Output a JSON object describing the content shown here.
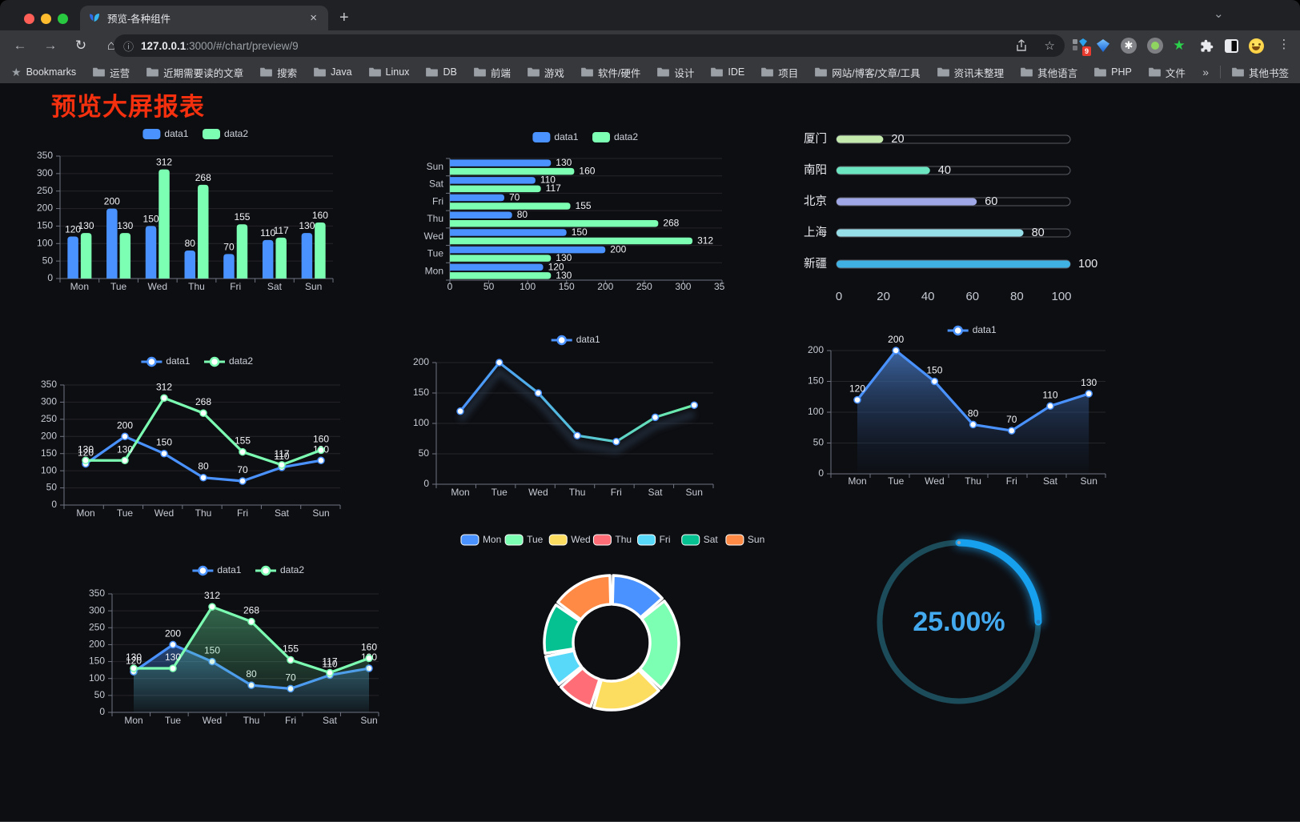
{
  "browser": {
    "tab": {
      "title": "预览-各种组件",
      "close": "×",
      "new_tab": "+",
      "chevron": "⌄"
    },
    "nav": {
      "back": "←",
      "forward": "→",
      "reload": "↻",
      "home": "⌂"
    },
    "url": {
      "info": "ⓘ",
      "host": "127.0.0.1",
      "rest": ":3000/#/chart/preview/9"
    },
    "actions": {
      "bookmark_star": "☆",
      "menu": "⋮",
      "extension_badge": "9",
      "green_star": "★",
      "asterisk": "✱"
    },
    "bookmarks_bar": {
      "star_label": "Bookmarks",
      "folders": [
        "运营",
        "近期需要读的文章",
        "搜索",
        "Java",
        "Linux",
        "DB",
        "前端",
        "游戏",
        "软件/硬件",
        "设计",
        "IDE",
        "项目",
        "网站/博客/文章/工具",
        "资讯未整理",
        "其他语言",
        "PHP",
        "文件服务器"
      ],
      "overflow": "»",
      "other": "其他书签"
    }
  },
  "page": {
    "title": "预览大屏报表",
    "title_color": "#f5300f"
  },
  "chart_data": [
    {
      "id": "bar-vertical",
      "type": "bar",
      "categories": [
        "Mon",
        "Tue",
        "Wed",
        "Thu",
        "Fri",
        "Sat",
        "Sun"
      ],
      "series": [
        {
          "name": "data1",
          "color": "#4992ff",
          "values": [
            120,
            200,
            150,
            80,
            70,
            110,
            130
          ]
        },
        {
          "name": "data2",
          "color": "#7cffb2",
          "values": [
            130,
            130,
            312,
            268,
            155,
            117,
            160
          ]
        }
      ],
      "ylim": [
        0,
        350
      ],
      "ystep": 50,
      "legend_position": "top",
      "value_labels": true,
      "grid": true
    },
    {
      "id": "bar-horizontal",
      "type": "bar-horizontal",
      "categories": [
        "Mon",
        "Tue",
        "Wed",
        "Thu",
        "Fri",
        "Sat",
        "Sun"
      ],
      "display_order_top_to_bottom": [
        "Sun",
        "Sat",
        "Fri",
        "Thu",
        "Wed",
        "Tue",
        "Mon"
      ],
      "series": [
        {
          "name": "data1",
          "color": "#4992ff",
          "values": [
            120,
            200,
            150,
            80,
            70,
            110,
            130
          ]
        },
        {
          "name": "data2",
          "color": "#7cffb2",
          "values": [
            130,
            130,
            312,
            268,
            155,
            117,
            160
          ]
        }
      ],
      "xlim": [
        0,
        350
      ],
      "xstep": 50,
      "legend_position": "top",
      "value_labels": true,
      "grid": true
    },
    {
      "id": "progress-bars",
      "type": "bar",
      "variant": "pictorial-progress",
      "categories": [
        "厦门",
        "南阳",
        "北京",
        "上海",
        "新疆"
      ],
      "values": [
        20,
        40,
        60,
        80,
        100
      ],
      "colors": [
        "#c4ebad",
        "#6be6c1",
        "#a0a7e6",
        "#96dee8",
        "#3fb1e3"
      ],
      "xlim": [
        0,
        100
      ],
      "xticks": [
        0,
        20,
        40,
        60,
        80,
        100
      ],
      "value_labels": true,
      "grid": false
    },
    {
      "id": "line-basic",
      "type": "line",
      "categories": [
        "Mon",
        "Tue",
        "Wed",
        "Thu",
        "Fri",
        "Sat",
        "Sun"
      ],
      "series": [
        {
          "name": "data1",
          "color": "#4992ff",
          "values": [
            120,
            200,
            150,
            80,
            70,
            110,
            130
          ]
        },
        {
          "name": "data2",
          "color": "#7cffb2",
          "values": [
            130,
            130,
            312,
            268,
            155,
            117,
            160
          ]
        }
      ],
      "ylim": [
        0,
        350
      ],
      "ystep": 50,
      "legend_position": "top",
      "value_labels": true,
      "grid": true
    },
    {
      "id": "line-gradient",
      "type": "line",
      "variant": "gradient-shadow",
      "categories": [
        "Mon",
        "Tue",
        "Wed",
        "Thu",
        "Fri",
        "Sat",
        "Sun"
      ],
      "series": [
        {
          "name": "data1",
          "color": "#4992ff",
          "gradient": [
            "#4992ff",
            "#55c1d9",
            "#6ef0a7"
          ],
          "values": [
            120,
            200,
            150,
            80,
            70,
            110,
            130
          ]
        }
      ],
      "ylim": [
        0,
        200
      ],
      "ystep": 50,
      "legend_position": "top",
      "value_labels": false,
      "grid": true
    },
    {
      "id": "area-single",
      "type": "area",
      "categories": [
        "Mon",
        "Tue",
        "Wed",
        "Thu",
        "Fri",
        "Sat",
        "Sun"
      ],
      "series": [
        {
          "name": "data1",
          "color": "#4992ff",
          "area_from": "rgba(68,115,185,0.85)",
          "area_to": "rgba(25,45,75,0.05)",
          "values": [
            120,
            200,
            150,
            80,
            70,
            110,
            130
          ]
        }
      ],
      "ylim": [
        0,
        200
      ],
      "ystep": 50,
      "legend_position": "top",
      "value_labels": true,
      "grid": true
    },
    {
      "id": "area-double",
      "type": "area",
      "categories": [
        "Mon",
        "Tue",
        "Wed",
        "Thu",
        "Fri",
        "Sat",
        "Sun"
      ],
      "series": [
        {
          "name": "data1",
          "color": "#4992ff",
          "area_from": "rgba(73,146,255,0.42)",
          "area_to": "rgba(73,146,255,0.03)",
          "values": [
            120,
            200,
            150,
            80,
            70,
            110,
            130
          ]
        },
        {
          "name": "data2",
          "color": "#7cffb2",
          "area_from": "rgba(96,210,145,0.45)",
          "area_to": "rgba(96,210,145,0.03)",
          "values": [
            130,
            130,
            312,
            268,
            155,
            117,
            160
          ]
        }
      ],
      "ylim": [
        0,
        350
      ],
      "ystep": 50,
      "legend_position": "top",
      "value_labels": true,
      "grid": true
    },
    {
      "id": "donut",
      "type": "pie",
      "variant": "doughnut-rounded",
      "categories": [
        "Mon",
        "Tue",
        "Wed",
        "Thu",
        "Fri",
        "Sat",
        "Sun"
      ],
      "values": [
        120,
        200,
        150,
        80,
        70,
        110,
        130
      ],
      "colors": [
        "#4992ff",
        "#7cffb2",
        "#fddd60",
        "#ff6e76",
        "#58d9f9",
        "#05c091",
        "#ff8a45"
      ],
      "border_color": "#ffffff",
      "legend_position": "top",
      "start_angle_deg": -90,
      "clockwise": true
    },
    {
      "id": "gauge",
      "type": "gauge",
      "value": 25,
      "label": "25.00%",
      "progress_color": "#16a0ee",
      "track_color": "#1c4b59",
      "label_color": "#44aaf0"
    }
  ]
}
